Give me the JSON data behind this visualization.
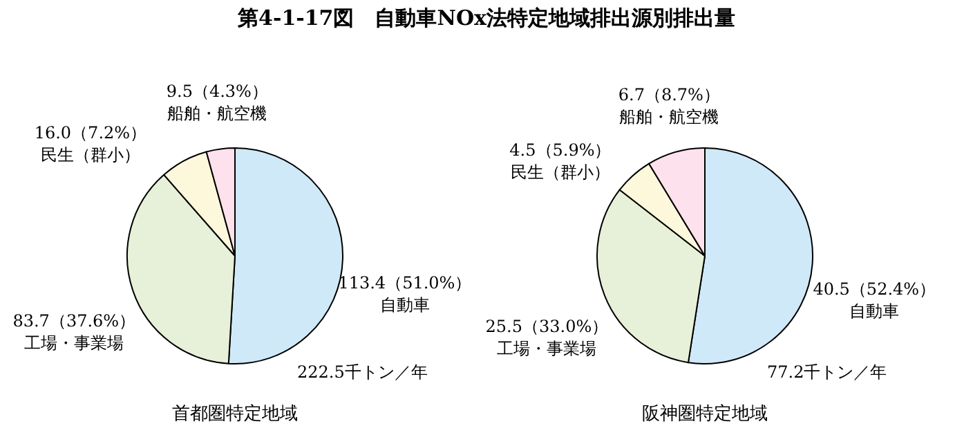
{
  "chart_data": [
    {
      "type": "pie",
      "title": "第4-1-17図　自動車NOx法特定地域排出源別排出量",
      "subtitle": "首都圏特定地域",
      "categories": [
        "自動車",
        "工場・事業場",
        "民生（群小）",
        "船舶・航空機"
      ],
      "values": [
        113.4,
        83.7,
        16.0,
        9.5
      ],
      "value_labels": [
        "113.4（51.0%）",
        "83.7（37.6%）",
        "16.0（7.2%）",
        "9.5（4.3%）"
      ],
      "colors": [
        "#cfe9f9",
        "#e7f0d8",
        "#fdf8dc",
        "#fde1ec"
      ],
      "annotations": [
        "222.5千トン／年"
      ],
      "legend": false
    },
    {
      "type": "pie",
      "subtitle": "阪神圏特定地域",
      "categories": [
        "自動車",
        "工場・事業場",
        "民生（群小）",
        "船舶・航空機"
      ],
      "values": [
        40.5,
        25.5,
        4.5,
        6.7
      ],
      "value_labels": [
        "40.5（52.4%）",
        "25.5（33.0%）",
        "4.5（5.9%）",
        "6.7（8.7%）"
      ],
      "colors": [
        "#cfe9f9",
        "#e7f0d8",
        "#fdf8dc",
        "#fde1ec"
      ],
      "annotations": [
        "77.2千トン／年"
      ],
      "legend": false
    }
  ]
}
